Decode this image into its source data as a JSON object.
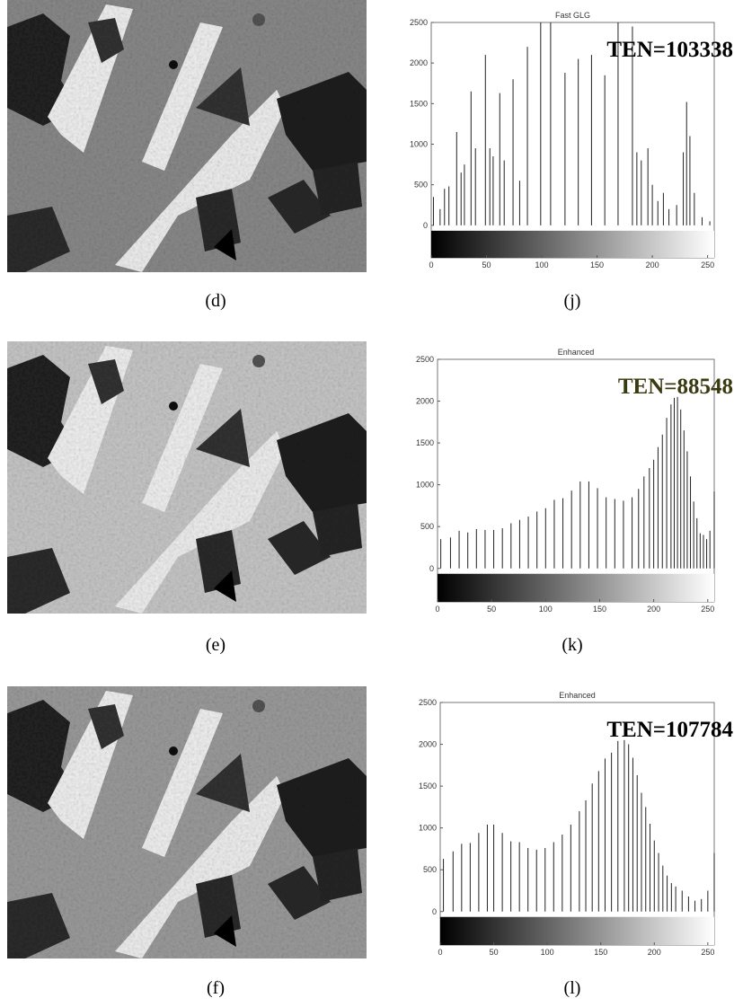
{
  "images": [
    {
      "caption": "(d)"
    },
    {
      "caption": "(e)"
    },
    {
      "caption": "(f)"
    }
  ],
  "chart_data": [
    {
      "type": "bar",
      "title": "Fast GLG",
      "annotation": "TEN=103338",
      "annotation_color": "#000000",
      "caption": "(j)",
      "color": "#222222",
      "x": [
        2,
        8,
        12,
        16,
        23,
        27,
        30,
        36,
        40,
        49,
        53,
        56,
        62,
        66,
        74,
        80,
        87,
        99,
        108,
        121,
        133,
        145,
        157,
        169,
        182,
        186,
        190,
        196,
        200,
        205,
        210,
        215,
        222,
        228,
        231,
        234,
        238,
        245,
        252
      ],
      "values": [
        350,
        200,
        450,
        480,
        1150,
        650,
        750,
        1650,
        950,
        2100,
        950,
        850,
        1630,
        800,
        1800,
        550,
        2200,
        2500,
        2500,
        1880,
        2050,
        2100,
        1850,
        2500,
        2450,
        900,
        800,
        950,
        500,
        300,
        400,
        200,
        250,
        900,
        1520,
        1100,
        400,
        100,
        50
      ],
      "xlim": [
        0,
        256
      ],
      "ylim": [
        -400,
        2500
      ],
      "xticks": [
        0,
        50,
        100,
        150,
        200,
        250
      ],
      "yticks": [
        0,
        500,
        1000,
        1500,
        2000,
        2500
      ]
    },
    {
      "type": "bar",
      "title": "Enhanced",
      "annotation": "TEN=88548",
      "annotation_color": "#3a3a10",
      "caption": "(k)",
      "color": "#222222",
      "x": [
        3,
        12,
        20,
        28,
        36,
        44,
        52,
        60,
        68,
        76,
        84,
        92,
        100,
        108,
        116,
        124,
        132,
        140,
        148,
        156,
        164,
        172,
        180,
        186,
        191,
        196,
        200,
        204,
        208,
        212,
        216,
        219,
        222,
        225,
        228,
        231,
        234,
        237,
        240,
        243,
        246,
        249,
        252,
        256
      ],
      "values": [
        350,
        370,
        450,
        430,
        470,
        460,
        460,
        480,
        540,
        580,
        620,
        680,
        720,
        820,
        840,
        930,
        1040,
        1040,
        960,
        850,
        830,
        810,
        850,
        950,
        1100,
        1200,
        1300,
        1450,
        1600,
        1800,
        1960,
        2040,
        2050,
        1900,
        1650,
        1400,
        1100,
        800,
        600,
        420,
        400,
        350,
        450,
        920
      ],
      "xlim": [
        0,
        256
      ],
      "ylim": [
        -400,
        2500
      ],
      "xticks": [
        0,
        50,
        100,
        150,
        200,
        250
      ],
      "yticks": [
        0,
        500,
        1000,
        1500,
        2000,
        2500
      ]
    },
    {
      "type": "bar",
      "title": "Enhanced",
      "annotation": "TEN=107784",
      "annotation_color": "#000000",
      "caption": "(l)",
      "color": "#222222",
      "x": [
        3,
        12,
        20,
        28,
        36,
        44,
        50,
        58,
        66,
        74,
        82,
        90,
        98,
        106,
        114,
        122,
        130,
        136,
        142,
        148,
        154,
        160,
        166,
        172,
        176,
        180,
        184,
        188,
        192,
        196,
        200,
        204,
        208,
        212,
        216,
        220,
        226,
        232,
        238,
        244,
        250,
        256
      ],
      "values": [
        630,
        720,
        810,
        820,
        940,
        1040,
        1040,
        940,
        840,
        830,
        760,
        740,
        760,
        830,
        920,
        1040,
        1200,
        1330,
        1530,
        1680,
        1830,
        1900,
        2040,
        2050,
        2000,
        1840,
        1630,
        1420,
        1250,
        1050,
        850,
        700,
        550,
        430,
        340,
        300,
        250,
        180,
        130,
        150,
        250,
        700
      ],
      "xlim": [
        0,
        256
      ],
      "ylim": [
        -400,
        2500
      ],
      "xticks": [
        0,
        50,
        100,
        150,
        200,
        250
      ],
      "yticks": [
        0,
        500,
        1000,
        1500,
        2000,
        2500
      ]
    }
  ]
}
